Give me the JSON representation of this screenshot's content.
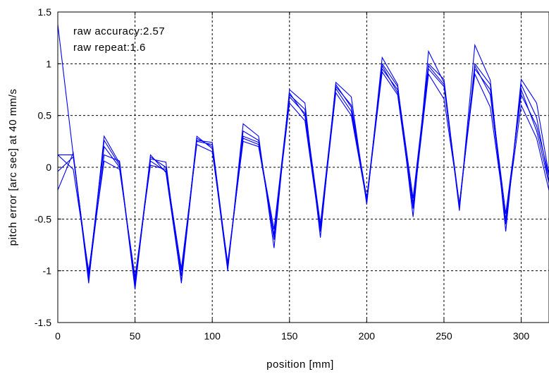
{
  "chart_data": {
    "type": "line",
    "title": "",
    "xlabel": "position [mm]",
    "ylabel": "pitch error [arc sec] at 40 mm/s",
    "xlim": [
      0,
      318
    ],
    "ylim": [
      -1.5,
      1.5
    ],
    "xticks": [
      0,
      50,
      100,
      150,
      200,
      250,
      300
    ],
    "yticks": [
      -1.5,
      -1,
      -0.5,
      0,
      0.5,
      1,
      1.5
    ],
    "xtick_labels": [
      "0",
      "50",
      "100",
      "150",
      "200",
      "250",
      "300"
    ],
    "ytick_labels": [
      "-1.5",
      "-1",
      "-0.5",
      "0",
      "0.5",
      "1",
      "1.5"
    ],
    "grid": true,
    "line_color": "#0000ff",
    "annotations": [
      "raw accuracy:2.57",
      "raw repeat:1.6"
    ],
    "x": [
      0,
      10,
      20,
      30,
      40,
      50,
      60,
      70,
      80,
      90,
      100,
      110,
      120,
      130,
      140,
      150,
      160,
      170,
      180,
      190,
      200,
      210,
      220,
      230,
      240,
      250,
      260,
      270,
      280,
      290,
      300,
      310,
      320
    ],
    "series": [
      {
        "values": [
          1.38,
          0.12,
          -1.05,
          0.26,
          0.02,
          -1.12,
          0.06,
          -0.04,
          -1.05,
          0.28,
          0.2,
          -0.98,
          0.3,
          0.24,
          -0.7,
          0.72,
          0.5,
          -0.6,
          0.8,
          0.58,
          -0.34,
          1.0,
          0.78,
          -0.3,
          1.0,
          0.85,
          -0.4,
          1.0,
          0.8,
          -0.55,
          0.8,
          0.48,
          -0.3
        ]
      },
      {
        "values": [
          0.12,
          0.12,
          -1.12,
          0.3,
          0.04,
          -1.18,
          0.12,
          -0.05,
          -1.1,
          0.3,
          0.18,
          -1.0,
          0.42,
          0.3,
          -0.78,
          0.75,
          0.62,
          -0.68,
          0.82,
          0.68,
          -0.36,
          1.06,
          0.8,
          -0.48,
          1.12,
          0.82,
          -0.42,
          1.18,
          0.84,
          -0.62,
          0.85,
          0.62,
          -0.25
        ]
      },
      {
        "values": [
          -0.22,
          0.14,
          -1.08,
          0.12,
          0.06,
          -1.15,
          0.08,
          0.05,
          -1.12,
          0.26,
          0.24,
          -0.95,
          0.28,
          0.22,
          -0.6,
          0.7,
          0.56,
          -0.55,
          0.78,
          0.6,
          -0.3,
          0.98,
          0.72,
          -0.35,
          0.95,
          0.78,
          -0.38,
          0.95,
          0.75,
          -0.45,
          0.7,
          0.4,
          -0.2
        ]
      },
      {
        "values": [
          0.12,
          -0.02,
          -1.0,
          0.06,
          -0.02,
          -1.06,
          0.02,
          -0.02,
          -0.98,
          0.22,
          0.15,
          -0.92,
          0.25,
          0.2,
          -0.65,
          0.62,
          0.45,
          -0.62,
          0.72,
          0.5,
          -0.33,
          0.92,
          0.7,
          -0.4,
          0.9,
          0.66,
          -0.35,
          0.9,
          0.58,
          -0.5,
          0.6,
          0.28,
          -0.35
        ]
      },
      {
        "values": [
          -0.04,
          0.1,
          -1.03,
          0.2,
          0.0,
          -1.1,
          0.1,
          0.0,
          -1.0,
          0.25,
          0.22,
          -0.97,
          0.35,
          0.26,
          -0.68,
          0.68,
          0.52,
          -0.58,
          0.76,
          0.54,
          -0.32,
          0.95,
          0.75,
          -0.38,
          0.98,
          0.8,
          -0.36,
          0.98,
          0.7,
          -0.52,
          0.75,
          0.35,
          -0.28
        ]
      }
    ]
  }
}
